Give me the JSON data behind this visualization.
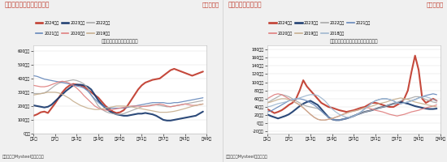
{
  "chart1": {
    "title_top": "图：国内港口库存年度对比",
    "title_unit": "单位：万吨",
    "subtitle": "玉米：港口库存：中国（周）",
    "source": "资料来源：Mysteel，长安期货",
    "legend": [
      {
        "label": "2024年度",
        "color": "#c0392b",
        "lw": 1.5
      },
      {
        "label": "2023年度",
        "color": "#1a3a6e",
        "lw": 1.5
      },
      {
        "label": "2022年度",
        "color": "#aaaaaa",
        "lw": 0.9
      },
      {
        "label": "2021年度",
        "color": "#6688bb",
        "lw": 0.9
      },
      {
        "label": "2020年度",
        "color": "#e08080",
        "lw": 0.9
      },
      {
        "label": "2019年度",
        "color": "#c8b090",
        "lw": 0.9
      }
    ],
    "series": {
      "2024": [
        130,
        140,
        155,
        160,
        150,
        185,
        220,
        260,
        300,
        330,
        350,
        360,
        355,
        350,
        340,
        320,
        300,
        280,
        260,
        230,
        200,
        180,
        160,
        150,
        155,
        170,
        200,
        240,
        280,
        320,
        350,
        370,
        380,
        390,
        395,
        400,
        420,
        440,
        460,
        470,
        460,
        450,
        440,
        430,
        420,
        430,
        440,
        450
      ],
      "2023": [
        205,
        200,
        195,
        190,
        195,
        210,
        235,
        260,
        285,
        310,
        330,
        350,
        355,
        355,
        350,
        340,
        320,
        280,
        240,
        210,
        185,
        165,
        150,
        140,
        135,
        130,
        130,
        135,
        140,
        145,
        145,
        150,
        145,
        140,
        130,
        115,
        100,
        95,
        95,
        100,
        105,
        110,
        115,
        120,
        125,
        130,
        145,
        160
      ],
      "2022": [
        290,
        290,
        290,
        295,
        310,
        330,
        350,
        365,
        375,
        380,
        385,
        390,
        385,
        375,
        360,
        330,
        280,
        240,
        200,
        175,
        160,
        150,
        145,
        140,
        140,
        145,
        155,
        165,
        175,
        185,
        195,
        200,
        205,
        210,
        210,
        205,
        200,
        195,
        195,
        200,
        205,
        210,
        215,
        220,
        225,
        230,
        235,
        240
      ],
      "2021": [
        420,
        415,
        405,
        395,
        390,
        385,
        380,
        375,
        370,
        365,
        360,
        355,
        345,
        340,
        330,
        310,
        280,
        250,
        225,
        205,
        190,
        185,
        185,
        185,
        185,
        185,
        190,
        195,
        200,
        205,
        210,
        215,
        220,
        225,
        225,
        225,
        225,
        220,
        220,
        225,
        225,
        230,
        235,
        240,
        245,
        250,
        255,
        260
      ],
      "2020": [
        350,
        345,
        340,
        340,
        345,
        355,
        365,
        375,
        380,
        375,
        365,
        350,
        330,
        305,
        275,
        250,
        225,
        200,
        185,
        175,
        170,
        170,
        175,
        180,
        185,
        190,
        195,
        200,
        200,
        200,
        198,
        198,
        200,
        205,
        210,
        215,
        210,
        200,
        195,
        200,
        205,
        210,
        215,
        210,
        205,
        205,
        210,
        215
      ],
      "2019": [
        280,
        285,
        290,
        295,
        300,
        300,
        300,
        295,
        285,
        270,
        255,
        235,
        220,
        205,
        195,
        185,
        180,
        175,
        175,
        180,
        185,
        190,
        195,
        200,
        200,
        200,
        198,
        195,
        190,
        185,
        180,
        175,
        170,
        165,
        160,
        155,
        155,
        155,
        158,
        162,
        168,
        175,
        182,
        190,
        198,
        205,
        210,
        215
      ]
    }
  },
  "chart2": {
    "title_top": "图：北港玉米到货量",
    "title_unit": "单位：万吨",
    "subtitle": "玉米：货物：到港量：北方四港（周）",
    "source": "资料来源：Mysteel，长安期货",
    "legend": [
      {
        "label": "2024年度",
        "color": "#c0392b",
        "lw": 1.5
      },
      {
        "label": "2023年度",
        "color": "#1a3a6e",
        "lw": 1.5
      },
      {
        "label": "2022年度",
        "color": "#aaaaaa",
        "lw": 0.9
      },
      {
        "label": "2021年度",
        "color": "#6688bb",
        "lw": 0.9
      },
      {
        "label": "2020年度",
        "color": "#e08080",
        "lw": 0.9
      },
      {
        "label": "2019年度",
        "color": "#c8b090",
        "lw": 0.9
      },
      {
        "label": "2018年度",
        "color": "#a0b8d0",
        "lw": 0.9
      }
    ],
    "series": {
      "2024": [
        35,
        30,
        25,
        28,
        32,
        38,
        45,
        50,
        60,
        80,
        105,
        90,
        80,
        70,
        60,
        50,
        45,
        40,
        38,
        35,
        32,
        30,
        28,
        30,
        32,
        35,
        38,
        40,
        45,
        50,
        50,
        48,
        45,
        42,
        40,
        40,
        45,
        50,
        60,
        80,
        125,
        165,
        130,
        60,
        50,
        55,
        60,
        55
      ],
      "2023": [
        22,
        18,
        15,
        12,
        15,
        18,
        22,
        28,
        35,
        42,
        48,
        52,
        55,
        50,
        45,
        35,
        25,
        15,
        10,
        8,
        8,
        10,
        12,
        15,
        18,
        22,
        25,
        28,
        30,
        32,
        35,
        38,
        40,
        42,
        45,
        48,
        50,
        52,
        50,
        48,
        45,
        42,
        40,
        38,
        36,
        35,
        35,
        36
      ],
      "2022": [
        50,
        55,
        60,
        65,
        70,
        68,
        65,
        60,
        55,
        50,
        45,
        42,
        40,
        38,
        36,
        30,
        22,
        15,
        10,
        8,
        8,
        10,
        12,
        15,
        18,
        22,
        25,
        28,
        30,
        32,
        35,
        38,
        40,
        42,
        45,
        48,
        50,
        55,
        58,
        60,
        62,
        65,
        65,
        62,
        58,
        55,
        52,
        50
      ],
      "2021": [
        28,
        30,
        35,
        40,
        45,
        50,
        55,
        58,
        60,
        60,
        58,
        55,
        50,
        45,
        38,
        30,
        22,
        15,
        10,
        8,
        8,
        10,
        12,
        15,
        18,
        22,
        28,
        35,
        42,
        50,
        55,
        58,
        60,
        60,
        58,
        55,
        50,
        48,
        50,
        52,
        55,
        58,
        62,
        65,
        68,
        70,
        72,
        70
      ],
      "2020": [
        60,
        65,
        70,
        72,
        70,
        65,
        60,
        55,
        50,
        45,
        38,
        30,
        22,
        15,
        10,
        8,
        8,
        10,
        12,
        15,
        18,
        22,
        25,
        28,
        30,
        32,
        35,
        38,
        38,
        35,
        32,
        30,
        28,
        25,
        22,
        20,
        18,
        20,
        22,
        25,
        28,
        30,
        32,
        35,
        38,
        40,
        42,
        45
      ],
      "2019": [
        50,
        52,
        55,
        58,
        60,
        60,
        58,
        55,
        50,
        45,
        38,
        30,
        22,
        15,
        10,
        8,
        8,
        10,
        12,
        15,
        18,
        22,
        25,
        28,
        30,
        32,
        35,
        38,
        40,
        42,
        45,
        48,
        50,
        52,
        55,
        58,
        60,
        62,
        60,
        58,
        55,
        52,
        50,
        48,
        46,
        44,
        42,
        40
      ],
      "2018": [
        40,
        42,
        45,
        48,
        50,
        52,
        55,
        58,
        60,
        62,
        65,
        68,
        70,
        70,
        68,
        62,
        55,
        45,
        35,
        28,
        22,
        18,
        15,
        15,
        18,
        22,
        28,
        35,
        42,
        50,
        55,
        58,
        60,
        60,
        58,
        55,
        50,
        48,
        50,
        52,
        55,
        58,
        62,
        65,
        65,
        62,
        58,
        55
      ]
    }
  },
  "bg_color": "#f0f0f0",
  "plot_bg": "#ffffff",
  "title_bar_color": "#e8e8e8",
  "title_red": "#c0392b",
  "title_dark": "#222222",
  "source_color": "#444444"
}
